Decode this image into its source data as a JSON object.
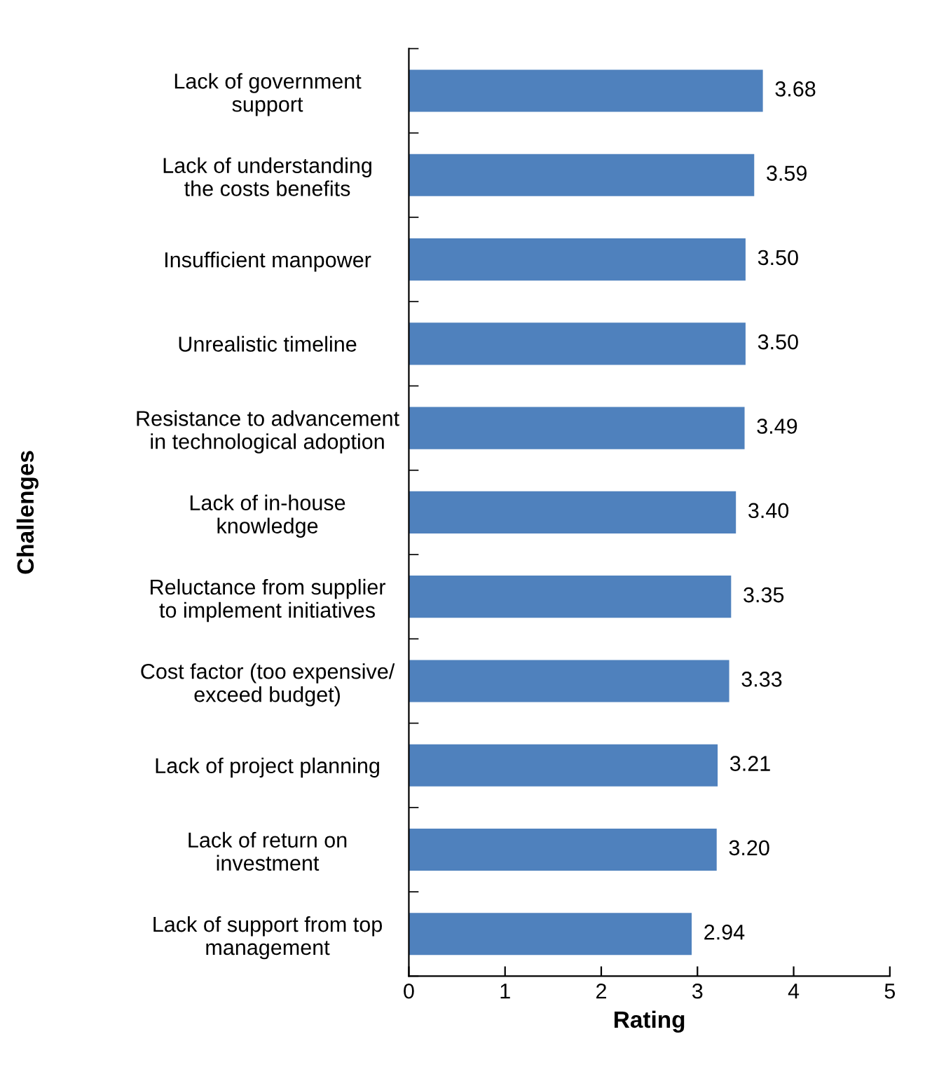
{
  "chart_data": {
    "type": "bar",
    "orientation": "horizontal",
    "xlabel": "Rating",
    "ylabel": "Challenges",
    "categories": [
      "Lack of government\nsupport",
      "Lack of understanding\nthe costs benefits",
      "Insufficient manpower",
      "Unrealistic timeline",
      "Resistance to advancement\nin technological adoption",
      "Lack of in-house\nknowledge",
      "Reluctance from supplier\nto implement initiatives",
      "Cost factor (too expensive/\nexceed budget)",
      "Lack of project planning",
      "Lack of return on\ninvestment",
      "Lack of support from top\nmanagement"
    ],
    "values": [
      3.68,
      3.59,
      3.5,
      3.5,
      3.49,
      3.4,
      3.35,
      3.33,
      3.21,
      3.2,
      2.94
    ],
    "value_labels": [
      "3.68",
      "3.59",
      "3.50",
      "3.50",
      "3.49",
      "3.40",
      "3.35",
      "3.33",
      "3.21",
      "3.20",
      "2.94"
    ],
    "color": "#4f81bd",
    "xlim": [
      0,
      5
    ],
    "xticks": [
      0,
      1,
      2,
      3,
      4,
      5
    ],
    "grid": false,
    "legend": false
  }
}
